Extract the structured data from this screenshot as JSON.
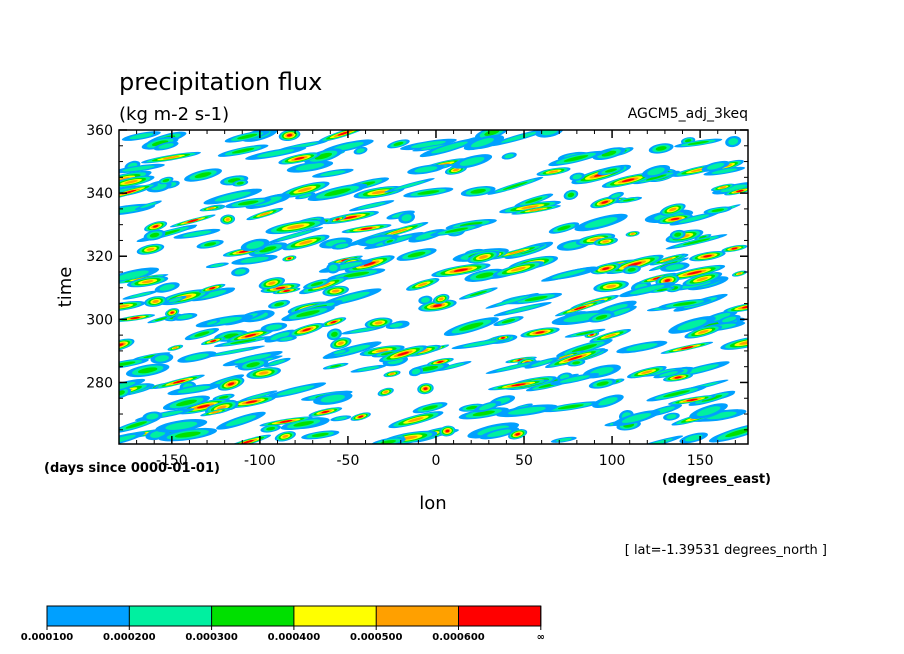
{
  "chart_data": {
    "type": "heatmap",
    "title": "precipitation flux",
    "units": "(kg m-2 s-1)",
    "model": "AGCM5_adj_3keq",
    "xlabel": "lon",
    "x_units": "(degrees_east)",
    "ylabel": "time",
    "y_units": "(days since 0000-01-01)",
    "xlim": [
      -180,
      177.1875
    ],
    "ylim": [
      260.5,
      360
    ],
    "x_ticks": [
      -150,
      -100,
      -50,
      0,
      50,
      100,
      150
    ],
    "x_tick_labels": [
      "-150",
      "-100",
      "-50",
      "0",
      "50",
      "100",
      "150"
    ],
    "y_ticks": [
      280,
      300,
      320,
      340,
      360
    ],
    "y_tick_labels": [
      "280",
      "300",
      "320",
      "340",
      "360"
    ],
    "annotation": "[ lat=-1.39531 degrees_north ]",
    "grid": false,
    "colorbar": {
      "position": "bottom",
      "levels": [
        "0.000100",
        "0.000200",
        "0.000300",
        "0.000400",
        "0.000500",
        "0.000600",
        "∞"
      ],
      "colors": [
        "#00a0ff",
        "#00f0a0",
        "#00e000",
        "#ffff00",
        "#ffa000",
        "#ff0000"
      ]
    },
    "pattern": {
      "description_free_levels": [
        0.0001,
        0.0002,
        0.0003,
        0.0004,
        0.0005,
        0.0006
      ],
      "seed": 7
    }
  }
}
